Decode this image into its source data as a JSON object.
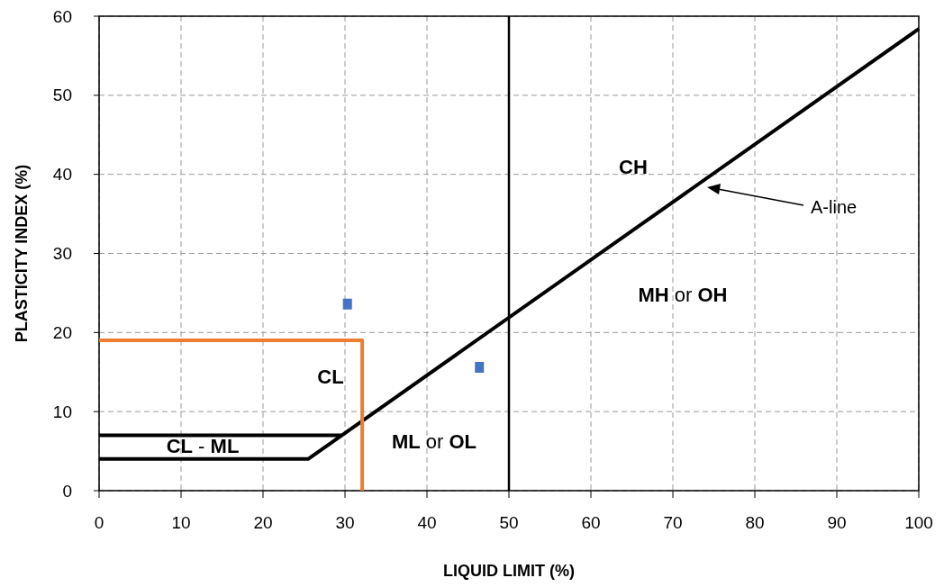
{
  "chart_data": {
    "type": "line",
    "xlabel": "LIQUID LIMIT (%)",
    "ylabel": "PLASTICITY INDEX (%)",
    "xlim": [
      0,
      100
    ],
    "xticks": [
      0,
      10,
      20,
      30,
      40,
      50,
      60,
      70,
      80,
      90,
      100
    ],
    "ylim": [
      0,
      60
    ],
    "yticks": [
      0,
      10,
      20,
      30,
      40,
      50,
      60
    ],
    "grid": true,
    "series": [
      {
        "color": "#000000",
        "x": [
          0,
          25.5,
          29.6,
          100,
          null,
          0,
          29.6
        ],
        "values": [
          4,
          4,
          7,
          58.4,
          null,
          7,
          7
        ]
      },
      {
        "color": "#ed7d31",
        "x": [
          0,
          32.1,
          32.1
        ],
        "values": [
          19,
          19,
          0
        ]
      },
      {
        "type": "scatter",
        "color": "#4472c4",
        "marker": "square",
        "x": [
          30.3,
          46.4
        ],
        "values": [
          23.6,
          15.6
        ]
      }
    ],
    "ref_lines": [
      {
        "axis": "x",
        "value": 50,
        "color": "#000000"
      }
    ],
    "annotations": [
      "A-line",
      "CH",
      "MH or OH",
      "CL",
      "ML or OL",
      "CL - ML"
    ]
  }
}
